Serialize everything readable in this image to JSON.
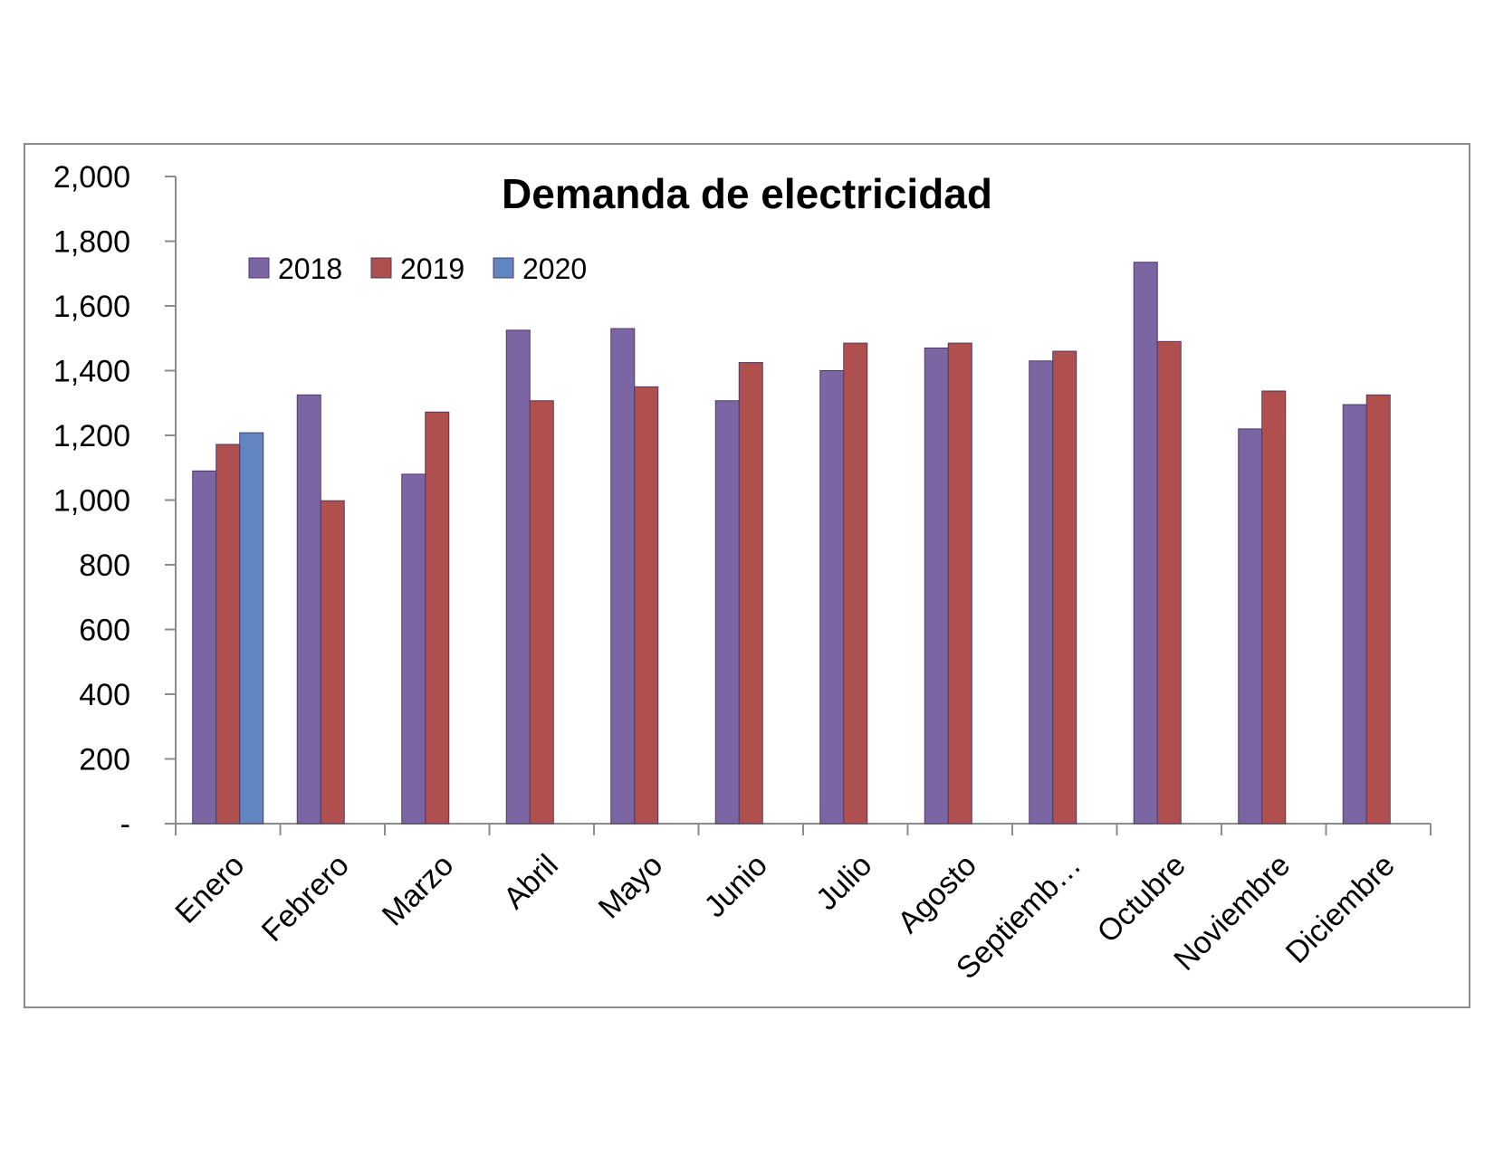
{
  "chart_data": {
    "type": "bar",
    "title": "Demanda de electricidad",
    "xlabel": "",
    "ylabel": "",
    "ylim": [
      0,
      2000
    ],
    "y_ticks": [
      0,
      200,
      400,
      600,
      800,
      1000,
      1200,
      1400,
      1600,
      1800,
      2000
    ],
    "y_tick_labels": [
      "-",
      "200",
      "400",
      "600",
      "800",
      "1,000",
      "1,200",
      "1,400",
      "1,600",
      "1,800",
      "2,000"
    ],
    "categories": [
      "Enero",
      "Febrero",
      "Marzo",
      "Abril",
      "Mayo",
      "Junio",
      "Julio",
      "Agosto",
      "Septiemb…",
      "Octubre",
      "Noviembre",
      "Diciembre"
    ],
    "series": [
      {
        "name": "2018",
        "color": "#7b66a3",
        "values": [
          1090,
          1325,
          1080,
          1525,
          1530,
          1307,
          1400,
          1470,
          1430,
          1735,
          1220,
          1295
        ]
      },
      {
        "name": "2019",
        "color": "#b0504e",
        "values": [
          1172,
          998,
          1272,
          1307,
          1350,
          1425,
          1485,
          1485,
          1460,
          1490,
          1337,
          1325
        ]
      },
      {
        "name": "2020",
        "color": "#6085c0",
        "values": [
          1208,
          null,
          null,
          null,
          null,
          null,
          null,
          null,
          null,
          null,
          null,
          null
        ]
      }
    ],
    "grid": false,
    "legend_position": "top-left"
  }
}
